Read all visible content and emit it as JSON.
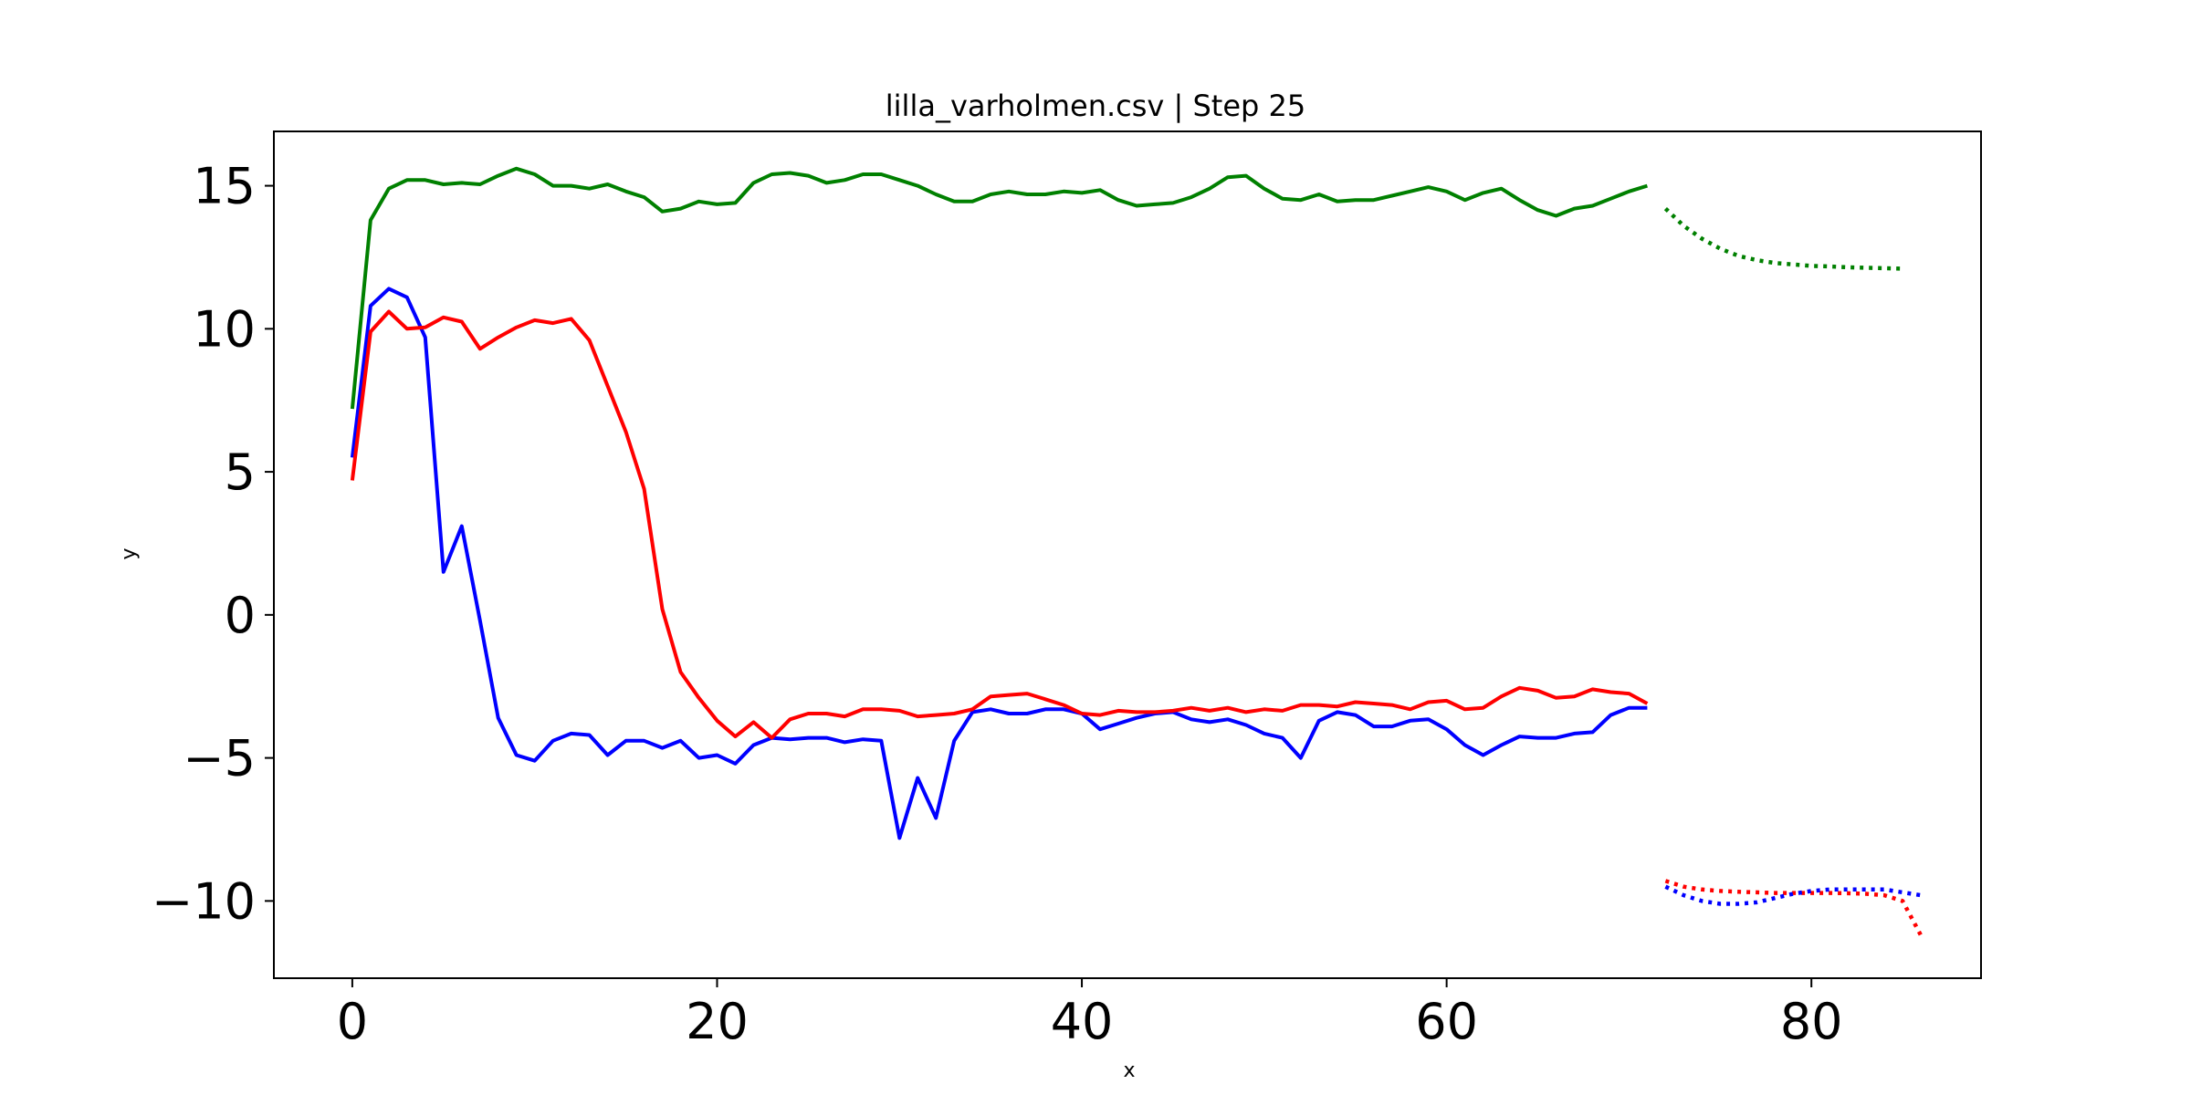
{
  "chart_data": {
    "type": "line",
    "title": "lilla_varholmen.csv | Step 25",
    "xlabel": "x",
    "ylabel": "y",
    "xlim": [
      -4.3,
      89.3
    ],
    "ylim": [
      -12.7,
      16.9
    ],
    "xticks": [
      0,
      20,
      40,
      60,
      80
    ],
    "yticks": [
      15,
      10,
      5,
      0,
      -5,
      -10
    ],
    "xtick_labels": [
      "0",
      "20",
      "40",
      "60",
      "80"
    ],
    "ytick_labels": [
      "15",
      "10",
      "5",
      "0",
      "−5",
      "−10"
    ],
    "grid": false,
    "legend": false,
    "series": [
      {
        "color": "#008000",
        "style": "solid",
        "x_start": 0,
        "values": [
          7.2,
          13.8,
          14.9,
          15.2,
          15.2,
          15.05,
          15.1,
          15.05,
          15.35,
          15.6,
          15.4,
          15.0,
          15.0,
          14.9,
          15.05,
          14.8,
          14.6,
          14.1,
          14.2,
          14.45,
          14.35,
          14.4,
          15.1,
          15.4,
          15.45,
          15.35,
          15.1,
          15.2,
          15.4,
          15.4,
          15.2,
          15.0,
          14.7,
          14.45,
          14.45,
          14.7,
          14.8,
          14.7,
          14.7,
          14.8,
          14.75,
          14.85,
          14.5,
          14.3,
          14.35,
          14.4,
          14.6,
          14.9,
          15.3,
          15.35,
          14.9,
          14.55,
          14.5,
          14.7,
          14.45,
          14.5,
          14.5,
          14.65,
          14.8,
          14.95,
          14.8,
          14.5,
          14.75,
          14.9,
          14.5,
          14.15,
          13.95,
          14.2,
          14.3,
          14.55,
          14.8,
          15.0
        ]
      },
      {
        "color": "#0000ff",
        "style": "solid",
        "x_start": 0,
        "values": [
          5.5,
          10.8,
          11.4,
          11.1,
          9.7,
          1.5,
          3.1,
          -0.2,
          -3.6,
          -4.9,
          -5.1,
          -4.4,
          -4.15,
          -4.2,
          -4.9,
          -4.4,
          -4.4,
          -4.65,
          -4.4,
          -5.0,
          -4.9,
          -5.2,
          -4.55,
          -4.3,
          -4.35,
          -4.3,
          -4.3,
          -4.45,
          -4.35,
          -4.4,
          -7.8,
          -5.7,
          -7.1,
          -4.4,
          -3.4,
          -3.3,
          -3.45,
          -3.45,
          -3.3,
          -3.3,
          -3.45,
          -4.0,
          -3.8,
          -3.6,
          -3.45,
          -3.4,
          -3.65,
          -3.75,
          -3.65,
          -3.85,
          -4.15,
          -4.3,
          -5.0,
          -3.7,
          -3.4,
          -3.5,
          -3.9,
          -3.9,
          -3.7,
          -3.65,
          -4.0,
          -4.55,
          -4.9,
          -4.55,
          -4.25,
          -4.3,
          -4.3,
          -4.15,
          -4.1,
          -3.5,
          -3.25,
          -3.25
        ]
      },
      {
        "color": "#ff0000",
        "style": "solid",
        "x_start": 0,
        "values": [
          4.7,
          9.9,
          10.6,
          10.0,
          10.05,
          10.4,
          10.25,
          9.3,
          9.7,
          10.05,
          10.3,
          10.2,
          10.35,
          9.6,
          8.0,
          6.4,
          4.4,
          0.2,
          -2.0,
          -2.9,
          -3.7,
          -4.25,
          -3.75,
          -4.3,
          -3.65,
          -3.45,
          -3.45,
          -3.55,
          -3.3,
          -3.3,
          -3.35,
          -3.55,
          -3.5,
          -3.45,
          -3.3,
          -2.85,
          -2.8,
          -2.75,
          -2.95,
          -3.15,
          -3.45,
          -3.5,
          -3.35,
          -3.4,
          -3.4,
          -3.35,
          -3.25,
          -3.35,
          -3.25,
          -3.4,
          -3.3,
          -3.35,
          -3.15,
          -3.15,
          -3.2,
          -3.05,
          -3.1,
          -3.15,
          -3.3,
          -3.05,
          -3.0,
          -3.3,
          -3.25,
          -2.85,
          -2.55,
          -2.65,
          -2.9,
          -2.85,
          -2.6,
          -2.7,
          -2.75,
          -3.1
        ]
      },
      {
        "color": "#008000",
        "style": "dotted",
        "x_start": 72,
        "values": [
          14.2,
          13.6,
          13.15,
          12.8,
          12.55,
          12.4,
          12.3,
          12.25,
          12.2,
          12.18,
          12.15,
          12.13,
          12.12,
          12.1
        ]
      },
      {
        "color": "#ff0000",
        "style": "dotted",
        "x_start": 72,
        "values": [
          -9.3,
          -9.5,
          -9.6,
          -9.65,
          -9.68,
          -9.7,
          -9.72,
          -9.72,
          -9.72,
          -9.72,
          -9.73,
          -9.75,
          -9.8,
          -10.0,
          -11.2
        ]
      },
      {
        "color": "#0000ff",
        "style": "dotted",
        "x_start": 72,
        "values": [
          -9.5,
          -9.8,
          -10.0,
          -10.1,
          -10.1,
          -10.05,
          -9.9,
          -9.75,
          -9.65,
          -9.6,
          -9.6,
          -9.6,
          -9.6,
          -9.7,
          -9.8
        ]
      }
    ]
  }
}
